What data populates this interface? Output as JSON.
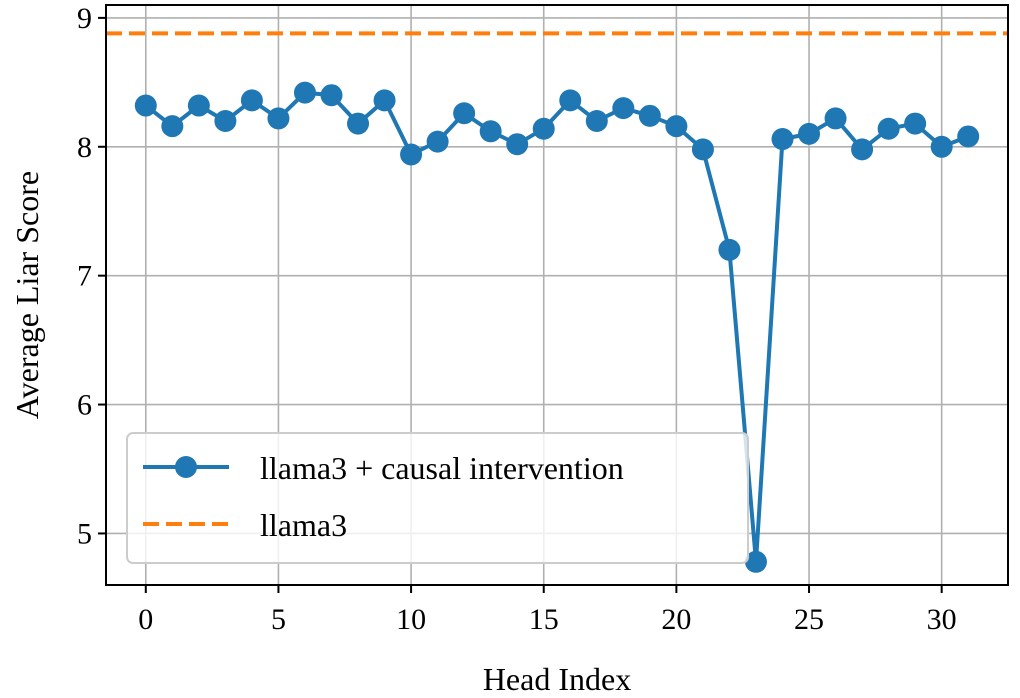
{
  "chart_data": {
    "type": "line",
    "xlabel": "Head Index",
    "ylabel": "Average Liar Score",
    "xlim": [
      -1.5,
      32.5
    ],
    "ylim": [
      4.6,
      9.1
    ],
    "xticks": [
      0,
      5,
      10,
      15,
      20,
      25,
      30
    ],
    "yticks": [
      5,
      6,
      7,
      8,
      9
    ],
    "grid": true,
    "legend_position": "lower-left",
    "series": [
      {
        "name": "llama3 + causal intervention",
        "style": "line-marker",
        "color": "#1f77b4",
        "x": [
          0,
          1,
          2,
          3,
          4,
          5,
          6,
          7,
          8,
          9,
          10,
          11,
          12,
          13,
          14,
          15,
          16,
          17,
          18,
          19,
          20,
          21,
          22,
          23,
          24,
          25,
          26,
          27,
          28,
          29,
          30,
          31
        ],
        "values": [
          8.32,
          8.16,
          8.32,
          8.2,
          8.36,
          8.22,
          8.42,
          8.4,
          8.18,
          8.36,
          7.94,
          8.04,
          8.26,
          8.12,
          8.02,
          8.14,
          8.36,
          8.2,
          8.3,
          8.24,
          8.16,
          7.98,
          7.2,
          4.78,
          8.06,
          8.1,
          8.22,
          7.98,
          8.14,
          8.18,
          8.0,
          8.08
        ]
      },
      {
        "name": "llama3",
        "style": "dashed-hline",
        "color": "#ff7f0e",
        "value": 8.88
      }
    ]
  }
}
